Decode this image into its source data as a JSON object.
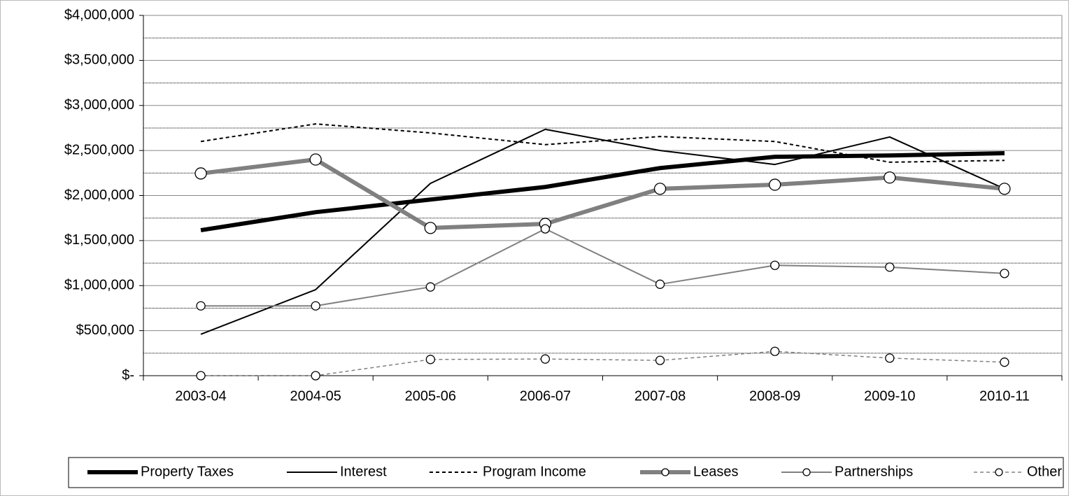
{
  "chart_data": {
    "type": "line",
    "categories": [
      "2003-04",
      "2004-05",
      "2005-06",
      "2006-07",
      "2007-08",
      "2008-09",
      "2009-10",
      "2010-11"
    ],
    "ylim": [
      0,
      4000000
    ],
    "yticks": [
      {
        "value": 0,
        "label": "$-"
      },
      {
        "value": 500000,
        "label": "$500,000"
      },
      {
        "value": 1000000,
        "label": "$1,000,000"
      },
      {
        "value": 1500000,
        "label": "$1,500,000"
      },
      {
        "value": 2000000,
        "label": "$2,000,000"
      },
      {
        "value": 2500000,
        "label": "$2,500,000"
      },
      {
        "value": 3000000,
        "label": "$3,000,000"
      },
      {
        "value": 3500000,
        "label": "$3,500,000"
      },
      {
        "value": 4000000,
        "label": "$4,000,000"
      }
    ],
    "grid": true,
    "legend": "bottom",
    "series": [
      {
        "name": "Property Taxes",
        "color": "#000000",
        "linestyle": "solid",
        "marker": false,
        "values": [
          1615000,
          1815000,
          1955000,
          2095000,
          2305000,
          2430000,
          2445000,
          2470000
        ]
      },
      {
        "name": "Interest",
        "color": "#000000",
        "linestyle": "solid",
        "marker": false,
        "values": [
          460000,
          955000,
          2135000,
          2735000,
          2500000,
          2345000,
          2650000,
          2075000
        ]
      },
      {
        "name": "Program Income",
        "color": "#000000",
        "linestyle": "dashed",
        "marker": false,
        "values": [
          2600000,
          2795000,
          2695000,
          2565000,
          2655000,
          2600000,
          2370000,
          2390000
        ]
      },
      {
        "name": "Leases",
        "color": "#808080",
        "linestyle": "solid",
        "marker": true,
        "values": [
          2245000,
          2400000,
          1640000,
          1685000,
          2075000,
          2120000,
          2200000,
          2075000
        ]
      },
      {
        "name": "Partnerships",
        "color": "#808080",
        "linestyle": "solid",
        "marker": true,
        "values": [
          775000,
          775000,
          985000,
          1630000,
          1015000,
          1225000,
          1205000,
          1135000
        ]
      },
      {
        "name": "Other",
        "color": "#808080",
        "linestyle": "dashed",
        "marker": true,
        "values": [
          0,
          0,
          180000,
          185000,
          170000,
          270000,
          195000,
          150000
        ]
      }
    ]
  }
}
